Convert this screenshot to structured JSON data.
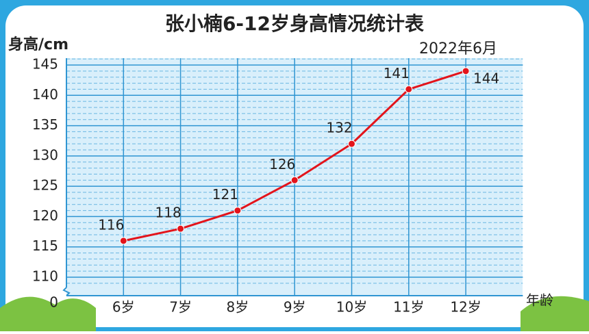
{
  "chart_data": {
    "type": "line",
    "title": "张小楠6-12岁身高情况统计表",
    "y_label": "身高/cm",
    "x_label": "年龄",
    "annotation": "2022年6月",
    "categories": [
      "6岁",
      "7岁",
      "8岁",
      "9岁",
      "10岁",
      "11岁",
      "12岁"
    ],
    "values": [
      116,
      118,
      121,
      126,
      132,
      141,
      144
    ],
    "color": "#e3141b",
    "ylim": [
      110,
      145
    ],
    "yticks": [
      0,
      110,
      115,
      120,
      125,
      130,
      135,
      140,
      145
    ],
    "axis_break": true,
    "grid": true
  }
}
